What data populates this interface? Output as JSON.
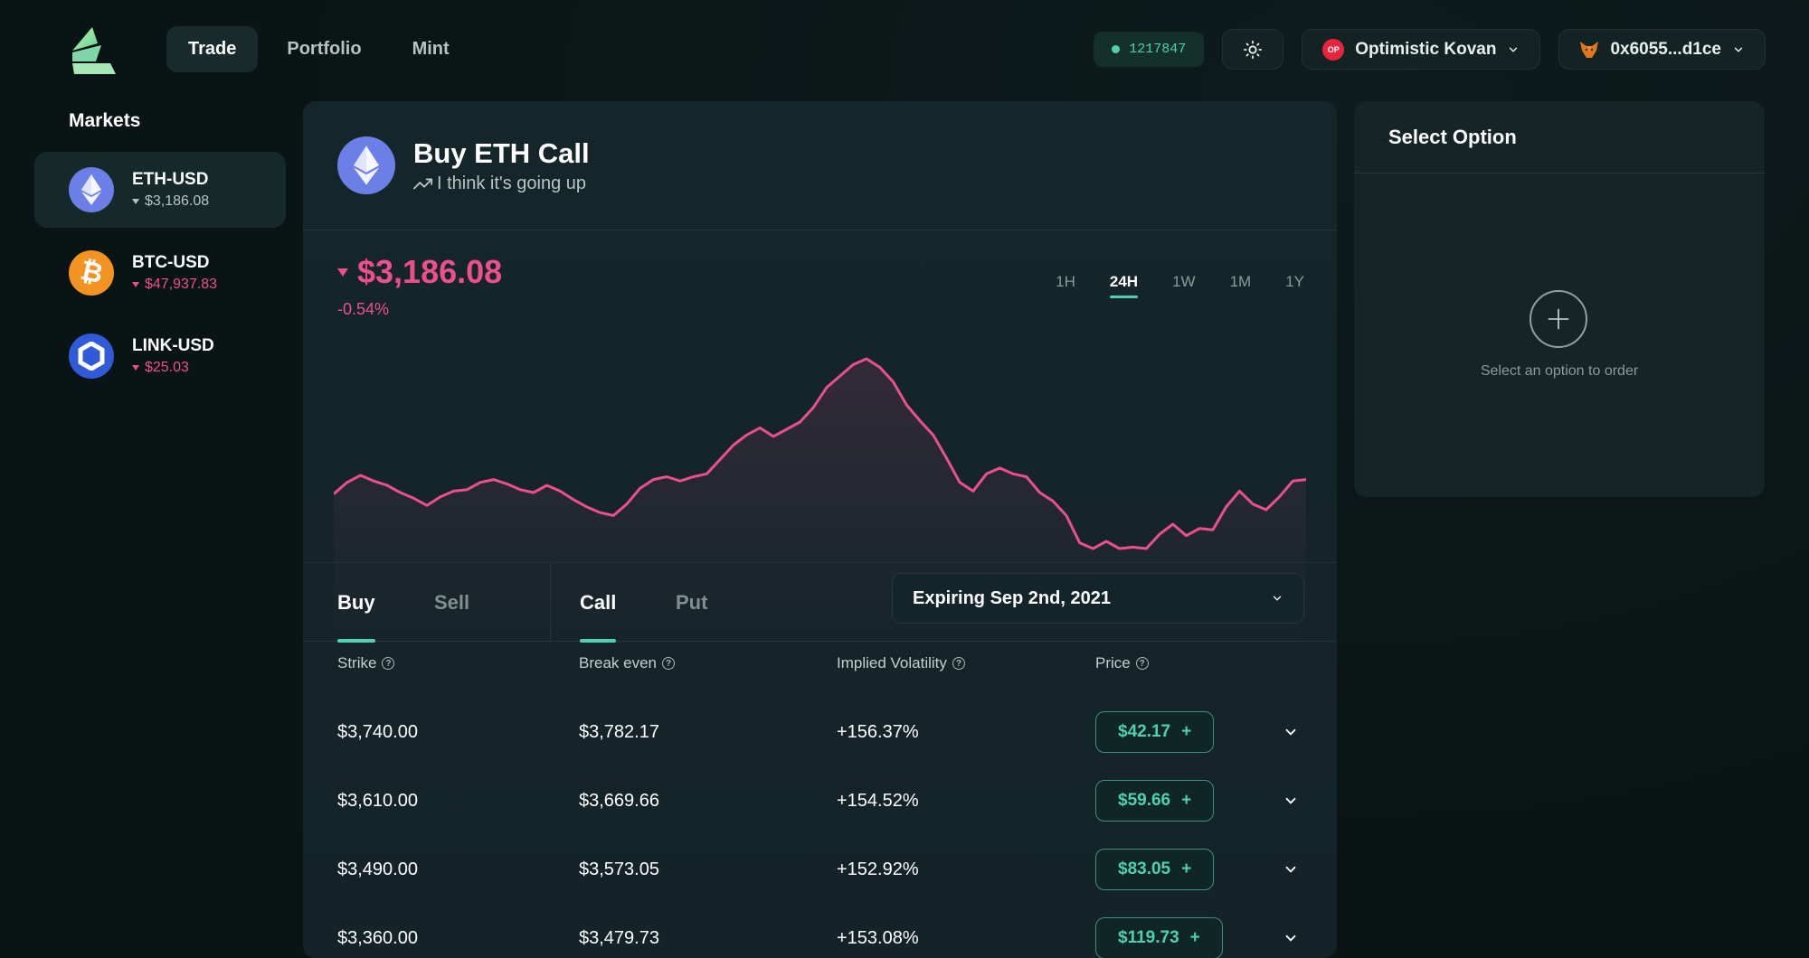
{
  "header": {
    "nav": [
      "Trade",
      "Portfolio",
      "Mint"
    ],
    "active_nav": "Trade",
    "block_number": "1217847",
    "network": "Optimistic Kovan",
    "network_badge": "OP",
    "wallet": "0x6055...d1ce",
    "icons": [
      "logo-icon",
      "sun-icon",
      "chevron-down-icon",
      "fox-icon"
    ]
  },
  "sidebar": {
    "title": "Markets",
    "markets": [
      {
        "name": "ETH-USD",
        "price": "$3,186.08",
        "icon": "ethereum-icon",
        "color": "#6c7fe6",
        "price_color": "#b8c4c3"
      },
      {
        "name": "BTC-USD",
        "price": "$47,937.83",
        "icon": "bitcoin-icon",
        "color": "#f39422",
        "price_color": "#ec4f8c"
      },
      {
        "name": "LINK-USD",
        "price": "$25.03",
        "icon": "chainlink-icon",
        "color": "#2f5ad8",
        "price_color": "#ec4f8c"
      }
    ]
  },
  "main": {
    "title": "Buy ETH Call",
    "subtitle": "I think it's going up",
    "price": "$3,186.08",
    "change": "-0.54%",
    "ranges": [
      "1H",
      "24H",
      "1W",
      "1M",
      "1Y"
    ],
    "active_range": "24H",
    "side_tabs": [
      "Buy",
      "Sell"
    ],
    "type_tabs": [
      "Call",
      "Put"
    ],
    "expiry": "Expiring Sep 2nd, 2021",
    "columns": [
      "Strike",
      "Break even",
      "Implied Volatility",
      "Price"
    ],
    "rows": [
      {
        "strike": "$3,740.00",
        "break_even": "$3,782.17",
        "iv": "+156.37%",
        "price": "$42.17"
      },
      {
        "strike": "$3,610.00",
        "break_even": "$3,669.66",
        "iv": "+154.52%",
        "price": "$59.66"
      },
      {
        "strike": "$3,490.00",
        "break_even": "$3,573.05",
        "iv": "+152.92%",
        "price": "$83.05"
      },
      {
        "strike": "$3,360.00",
        "break_even": "$3,479.73",
        "iv": "+153.08%",
        "price": "$119.73"
      }
    ],
    "colors": {
      "accent": "#4fd1b0",
      "negative": "#ec4f8c"
    }
  },
  "side_panel": {
    "title": "Select Option",
    "hint": "Select an option to order"
  },
  "chart_data": {
    "type": "line",
    "title": "",
    "xlabel": "",
    "ylabel": "",
    "color": "#ec4f8c",
    "values": [
      3162,
      3170,
      3175,
      3171,
      3168,
      3163,
      3159,
      3154,
      3160,
      3164,
      3165,
      3170,
      3172,
      3169,
      3165,
      3163,
      3168,
      3164,
      3158,
      3153,
      3149,
      3147,
      3155,
      3166,
      3172,
      3174,
      3171,
      3174,
      3176,
      3186,
      3196,
      3203,
      3208,
      3202,
      3207,
      3212,
      3222,
      3236,
      3244,
      3252,
      3256,
      3250,
      3240,
      3224,
      3213,
      3203,
      3187,
      3170,
      3164,
      3176,
      3180,
      3176,
      3174,
      3163,
      3157,
      3147,
      3128,
      3124,
      3129,
      3124,
      3125,
      3124,
      3134,
      3141,
      3133,
      3138,
      3137,
      3153,
      3164,
      3155,
      3151,
      3160,
      3171,
      3172
    ]
  }
}
